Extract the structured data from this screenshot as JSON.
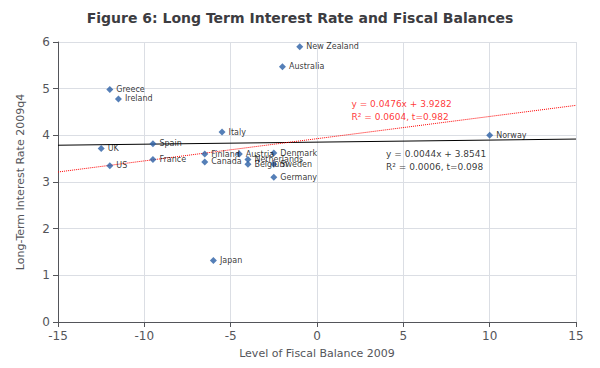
{
  "chart_data": {
    "type": "scatter",
    "title": "Figure 6: Long Term Interest Rate and Fiscal Balances",
    "xlabel": "Level of Fiscal Balance 2009",
    "ylabel": "Long-Term Interest Rate 2009q4",
    "xlim": [
      -15,
      15
    ],
    "ylim": [
      0,
      6
    ],
    "xticks": [
      -15,
      -10,
      -5,
      0,
      5,
      10,
      15
    ],
    "yticks": [
      0,
      1,
      2,
      3,
      4,
      5,
      6
    ],
    "grid": true,
    "series": [
      {
        "type": "scatter",
        "color": "#2B5FA5",
        "marker": "diamond",
        "labels": [
          "Greece",
          "Ireland",
          "UK",
          "US",
          "Spain",
          "France",
          "Finland",
          "Canada",
          "Italy",
          "Austria",
          "Netherlands",
          "Belgium",
          "Denmark",
          "Sweden",
          "Germany",
          "New Zealand",
          "Australia",
          "Japan",
          "Norway"
        ],
        "x": [
          -12.0,
          -11.5,
          -12.5,
          -12.0,
          -9.5,
          -9.5,
          -6.5,
          -6.5,
          -5.5,
          -4.5,
          -4.0,
          -4.0,
          -2.5,
          -2.5,
          -2.5,
          -1.0,
          -2.0,
          -6.0,
          10.0
        ],
        "values": [
          4.98,
          4.78,
          3.72,
          3.35,
          3.82,
          3.48,
          3.6,
          3.43,
          4.07,
          3.6,
          3.48,
          3.38,
          3.62,
          3.38,
          3.1,
          5.9,
          5.47,
          1.32,
          4.0
        ]
      },
      {
        "type": "line",
        "color": "#000000",
        "line_style": "solid",
        "x": [
          -15,
          15
        ],
        "values": [
          3.7881,
          3.9201
        ]
      },
      {
        "type": "line",
        "color": "#FF0000",
        "line_style": "dotted",
        "x": [
          -15,
          15
        ],
        "values": [
          3.2142,
          4.6422
        ]
      }
    ],
    "annotations": [
      {
        "text": "y = 0.0476x + 3.9282\nR² = 0.0604, t=0.982",
        "x": 2.0,
        "y": 4.82,
        "color": "#FF0000"
      },
      {
        "text": "y = 0.0044x + 3.8541\nR² = 0.0006, t=0.098",
        "x": 4.0,
        "y": 3.73,
        "color": "#000000"
      }
    ]
  }
}
